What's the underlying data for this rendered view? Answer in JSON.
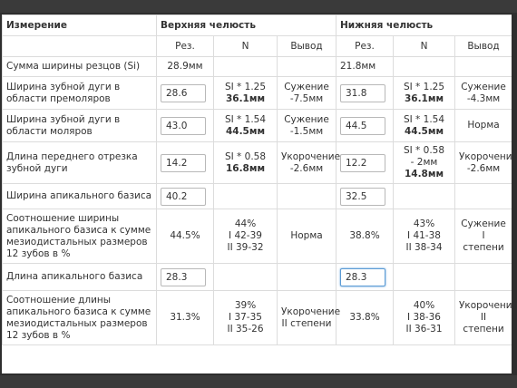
{
  "header": {
    "measurement": "Измерение",
    "upper": "Верхняя челюсть",
    "lower": "Нижняя челюсть"
  },
  "subheader": {
    "res": "Рез.",
    "n": "N",
    "conclusion": "Вывод"
  },
  "rows": [
    {
      "label": "Сумма ширины резцов (Si)",
      "upper": {
        "res": "28.9мм"
      },
      "lower": {
        "res": "21.8мм"
      }
    },
    {
      "label": "Ширина зубной дуги в области премоляров",
      "upper": {
        "input": "28.6",
        "n1": "SI * 1.25",
        "n2": "36.1мм",
        "c1": "Сужение",
        "c2": "-7.5мм"
      },
      "lower": {
        "input": "31.8",
        "n1": "SI * 1.25",
        "n2": "36.1мм",
        "c1": "Сужение",
        "c2": "-4.3мм"
      }
    },
    {
      "label": "Ширина зубной дуги в области моляров",
      "upper": {
        "input": "43.0",
        "n1": "SI * 1.54",
        "n2": "44.5мм",
        "c1": "Сужение",
        "c2": "-1.5мм"
      },
      "lower": {
        "input": "44.5",
        "n1": "SI * 1.54",
        "n2": "44.5мм",
        "c1": "Норма"
      }
    },
    {
      "label": "Длина переднего отрезка зубной дуги",
      "upper": {
        "input": "14.2",
        "n1": "SI * 0.58",
        "n2": "16.8мм",
        "c1": "Укорочение",
        "c2": "-2.6мм"
      },
      "lower": {
        "input": "12.2",
        "n1": "SI * 0.58",
        "n1b": "- 2мм",
        "n2": "14.8мм",
        "c1": "Укорочение",
        "c2": "-2.6мм"
      }
    },
    {
      "label": "Ширина апикального базиса",
      "upper": {
        "input": "40.2"
      },
      "lower": {
        "input": "32.5"
      }
    },
    {
      "label": "Соотношение ширины апикального базиса к сумме мезиодистальных размеров 12 зубов в %",
      "upper": {
        "res": "44.5%",
        "n1": "44%",
        "n2": "I 42-39",
        "n3": "II 39-32",
        "c1": "Норма"
      },
      "lower": {
        "res": "38.8%",
        "n1": "43%",
        "n2": "I 41-38",
        "n3": "II 38-34",
        "c1": "Сужение I",
        "c2": "степени"
      }
    },
    {
      "label": "Длина апикального базиса",
      "upper": {
        "input": "28.3"
      },
      "lower": {
        "input": "28.3"
      }
    },
    {
      "label": "Соотношение длины апикального базиса к сумме мезиодистальных размеров 12 зубов в %",
      "upper": {
        "res": "31.3%",
        "n1": "39%",
        "n2": "I 37-35",
        "n3": "II 35-26",
        "c1": "Укорочение",
        "c2": "II степени"
      },
      "lower": {
        "res": "33.8%",
        "n1": "40%",
        "n2": "I 38-36",
        "n3": "II 36-31",
        "c1": "Укорочение",
        "c2": "II степени"
      }
    }
  ]
}
